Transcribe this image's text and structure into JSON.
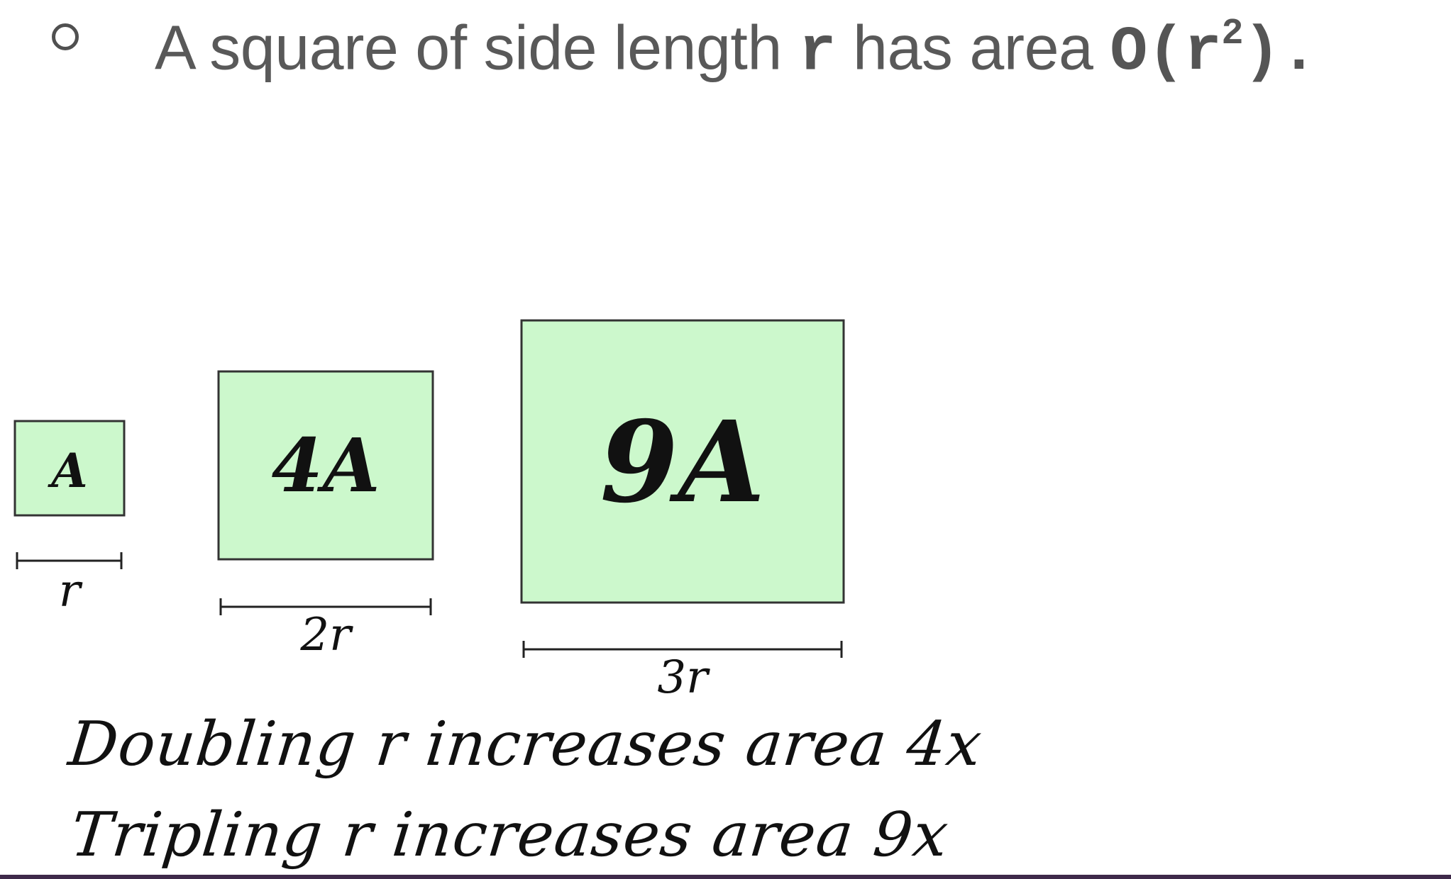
{
  "bullet": {
    "text_before": "A square of side length ",
    "var_r": "r",
    "text_middle": " has area ",
    "big_o_prefix": "O(",
    "big_o_var": "r",
    "big_o_exp": "2",
    "big_o_suffix": ").",
    "icon": "hollow-circle-bullet-icon"
  },
  "squares": [
    {
      "area_label": "A",
      "side_label": "r",
      "side_multiple": 1,
      "area_multiple": 1
    },
    {
      "area_label": "4A",
      "side_label": "2r",
      "side_multiple": 2,
      "area_multiple": 4
    },
    {
      "area_label": "9A",
      "side_label": "3r",
      "side_multiple": 3,
      "area_multiple": 9
    }
  ],
  "notes": {
    "line1": "Doubling r increases area 4x",
    "line2": "Tripling r increases area 9x"
  },
  "colors": {
    "square_fill": "#ccf8cc",
    "square_stroke": "#333333",
    "text_gray": "#595959",
    "ink": "#111111",
    "bottom_rule": "#3f2a4a"
  }
}
